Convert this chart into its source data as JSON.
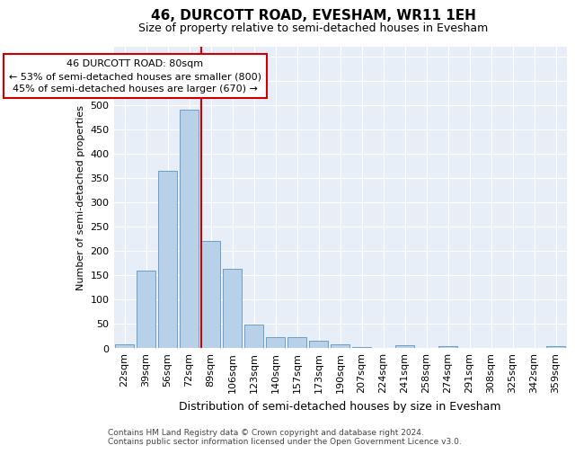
{
  "title": "46, DURCOTT ROAD, EVESHAM, WR11 1EH",
  "subtitle": "Size of property relative to semi-detached houses in Evesham",
  "xlabel": "Distribution of semi-detached houses by size in Evesham",
  "ylabel": "Number of semi-detached properties",
  "categories": [
    "22sqm",
    "39sqm",
    "56sqm",
    "72sqm",
    "89sqm",
    "106sqm",
    "123sqm",
    "140sqm",
    "157sqm",
    "173sqm",
    "190sqm",
    "207sqm",
    "224sqm",
    "241sqm",
    "258sqm",
    "274sqm",
    "291sqm",
    "308sqm",
    "325sqm",
    "342sqm",
    "359sqm"
  ],
  "values": [
    8,
    160,
    365,
    490,
    220,
    163,
    48,
    22,
    22,
    15,
    7,
    1,
    0,
    5,
    0,
    3,
    0,
    0,
    0,
    0,
    3
  ],
  "bar_color": "#b8d0e8",
  "bar_edge_color": "#6aa0cc",
  "ref_line_color": "#cc0000",
  "annotation_box_edge_color": "#cc0000",
  "annotation_box_face_color": "#ffffff",
  "ylim": [
    0,
    620
  ],
  "yticks": [
    0,
    50,
    100,
    150,
    200,
    250,
    300,
    350,
    400,
    450,
    500,
    550,
    600
  ],
  "bg_color": "#e8eef8",
  "title_fontsize": 11,
  "subtitle_fontsize": 9,
  "xlabel_fontsize": 9,
  "ylabel_fontsize": 8,
  "tick_fontsize": 8,
  "annotation_fontsize": 8,
  "footnote_fontsize": 6.5,
  "footnote1": "Contains HM Land Registry data © Crown copyright and database right 2024.",
  "footnote2": "Contains public sector information licensed under the Open Government Licence v3.0.",
  "ann_line1": "46 DURCOTT ROAD: 80sqm",
  "ann_line2": "← 53% of semi-detached houses are smaller (800)",
  "ann_line3": "45% of semi-detached houses are larger (670) →"
}
